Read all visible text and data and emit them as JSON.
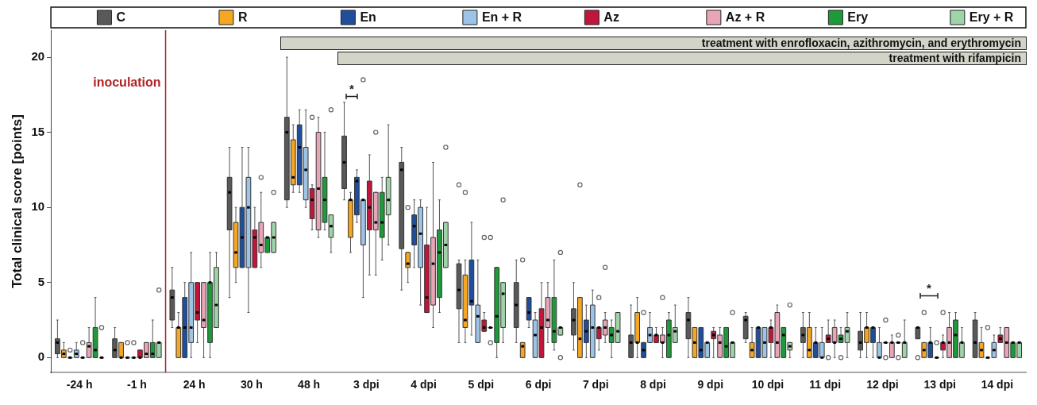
{
  "chart_data": {
    "type": "box",
    "ylabel": "Total clinical score [points]",
    "legend": "top",
    "categories": [
      "-24 h",
      "-1 h",
      "24 h",
      "30 h",
      "48 h",
      "3 dpi",
      "4 dpi",
      "5 dpi",
      "6 dpi",
      "7 dpi",
      "8 dpi",
      "9 dpi",
      "10 dpi",
      "11 dpi",
      "12 dpi",
      "13 dpi",
      "14 dpi"
    ],
    "ylim": [
      -1,
      21.8
    ],
    "yticks": [
      0,
      5,
      10,
      15,
      20
    ],
    "ref_lines": [
      {
        "axis": "x",
        "value": "24 h",
        "label": "inoculation",
        "color": "#b22222"
      }
    ],
    "annotations": [
      "treatment with enrofloxacin, azithromycin, and erythromycin",
      "treatment with rifampicin",
      "*",
      "*"
    ],
    "series": [
      {
        "name": "C",
        "color": "#595959",
        "boxes": [
          {
            "low": 0,
            "q1": 0.25,
            "median": 1,
            "q3": 1.25,
            "high": 2.5
          },
          {
            "low": 0,
            "q1": 0,
            "median": 0.5,
            "q3": 1.25,
            "high": 2
          },
          {
            "low": 2,
            "q1": 2.5,
            "median": 4,
            "q3": 4.5,
            "high": 6
          },
          {
            "low": 4,
            "q1": 8.5,
            "median": 11,
            "q3": 12,
            "high": 14
          },
          {
            "low": 10,
            "q1": 10.5,
            "median": 15,
            "q3": 16,
            "high": 20
          },
          {
            "low": 10.5,
            "q1": 11.25,
            "median": 13,
            "q3": 14.75,
            "high": 17
          },
          {
            "low": 4.5,
            "q1": 7.25,
            "median": 12.5,
            "q3": 13,
            "high": 14
          },
          {
            "low": 1,
            "q1": 3.25,
            "median": 4.5,
            "q3": 6.25,
            "high": 6.5,
            "outliers": [
              11.5
            ]
          },
          {
            "low": 1,
            "q1": 2,
            "median": 3.5,
            "q3": 5,
            "high": 6.5
          },
          {
            "low": 0.5,
            "q1": 1.5,
            "median": 2.5,
            "q3": 3.25,
            "high": 5
          },
          {
            "low": 0,
            "q1": 0,
            "median": 1,
            "q3": 1.5,
            "high": 3.5
          },
          {
            "low": 0,
            "q1": 1.25,
            "median": 2.5,
            "q3": 3,
            "high": 4
          },
          {
            "low": 1,
            "q1": 1.25,
            "median": 2.5,
            "q3": 2.75,
            "high": 3
          },
          {
            "low": 0,
            "q1": 1,
            "median": 1.5,
            "q3": 2,
            "high": 3
          },
          {
            "low": 0,
            "q1": 0.5,
            "median": 1,
            "q3": 1.75,
            "high": 3
          },
          {
            "low": 1.25,
            "q1": 1.25,
            "median": 2,
            "q3": 2,
            "high": 2,
            "outliers": [
              0
            ]
          },
          {
            "low": 0,
            "q1": 0,
            "median": 1,
            "q3": 2.5,
            "high": 3
          }
        ]
      },
      {
        "name": "R",
        "color": "#f5a623",
        "boxes": [
          {
            "low": 0,
            "q1": 0,
            "median": 0.25,
            "q3": 0.5,
            "high": 1
          },
          {
            "low": 0,
            "q1": 0,
            "median": 0,
            "q3": 1,
            "high": 1
          },
          {
            "low": 0,
            "q1": 0,
            "median": 2,
            "q3": 2,
            "high": 3
          },
          {
            "low": 5,
            "q1": 6,
            "median": 7,
            "q3": 9,
            "high": 10
          },
          {
            "low": 11,
            "q1": 11.5,
            "median": 12,
            "q3": 14.5,
            "high": 15.5
          },
          {
            "low": 7,
            "q1": 8,
            "median": 10.5,
            "q3": 10.5,
            "high": 11
          },
          {
            "low": 5,
            "q1": 6,
            "median": 6.25,
            "q3": 7,
            "high": 7,
            "outliers": [
              10
            ]
          },
          {
            "low": 1,
            "q1": 2,
            "median": 2.5,
            "q3": 5.5,
            "high": 6.5,
            "outliers": [
              11
            ]
          },
          {
            "low": 0,
            "q1": 0,
            "median": 0.75,
            "q3": 1,
            "high": 1,
            "outliers": [
              6.5
            ]
          },
          {
            "low": 0,
            "q1": 0,
            "median": 1.25,
            "q3": 4,
            "high": 4,
            "outliers": [
              11.5
            ]
          },
          {
            "low": 0,
            "q1": 1,
            "median": 1,
            "q3": 3,
            "high": 4
          },
          {
            "low": 0,
            "q1": 0,
            "median": 1,
            "q3": 2,
            "high": 2
          },
          {
            "low": 0,
            "q1": 0,
            "median": 0.5,
            "q3": 1,
            "high": 2
          },
          {
            "low": 0,
            "q1": 0,
            "median": 0.5,
            "q3": 2,
            "high": 3
          },
          {
            "low": 0,
            "q1": 1,
            "median": 2,
            "q3": 2,
            "high": 3
          },
          {
            "low": 0,
            "q1": 0,
            "median": 0.5,
            "q3": 1,
            "high": 1,
            "outliers": [
              3
            ]
          },
          {
            "low": 0,
            "q1": 0,
            "median": 0.5,
            "q3": 1,
            "high": 2
          }
        ]
      },
      {
        "name": "En",
        "color": "#1f4e9c",
        "boxes": [
          {
            "low": 0,
            "q1": 0,
            "median": 0,
            "q3": 0,
            "high": 0,
            "outliers": [
              0.5
            ]
          },
          {
            "low": 0,
            "q1": 0,
            "median": 0,
            "q3": 0,
            "high": 0,
            "outliers": [
              1
            ]
          },
          {
            "low": 0,
            "q1": 0,
            "median": 2,
            "q3": 4,
            "high": 5
          },
          {
            "low": 6,
            "q1": 6,
            "median": 8,
            "q3": 10,
            "high": 14
          },
          {
            "low": 11,
            "q1": 11.5,
            "median": 14,
            "q3": 15.5,
            "high": 16.5
          },
          {
            "low": 9,
            "q1": 9.5,
            "median": 11.75,
            "q3": 12,
            "high": 12.5
          },
          {
            "low": 6,
            "q1": 7.5,
            "median": 8.75,
            "q3": 9.5,
            "high": 10.5
          },
          {
            "low": 1.5,
            "q1": 3.5,
            "median": 3.75,
            "q3": 6.5,
            "high": 9
          },
          {
            "low": 2,
            "q1": 2.5,
            "median": 3,
            "q3": 4,
            "high": 4
          },
          {
            "low": 0,
            "q1": 1,
            "median": 1.75,
            "q3": 2.5,
            "high": 3.5
          },
          {
            "low": 0,
            "q1": 0,
            "median": 0.5,
            "q3": 1,
            "high": 1,
            "outliers": [
              3
            ]
          },
          {
            "low": 0,
            "q1": 0,
            "median": 0.5,
            "q3": 2,
            "high": 2
          },
          {
            "low": 0,
            "q1": 0,
            "median": 2,
            "q3": 2,
            "high": 2
          },
          {
            "low": 0,
            "q1": 0,
            "median": 1,
            "q3": 1,
            "high": 2
          },
          {
            "low": 0,
            "q1": 1,
            "median": 2,
            "q3": 2,
            "high": 2
          },
          {
            "low": 0,
            "q1": 0,
            "median": 1,
            "q3": 1,
            "high": 2
          },
          {
            "low": 0,
            "q1": 0,
            "median": 0,
            "q3": 0,
            "high": 0,
            "outliers": [
              2
            ]
          }
        ]
      },
      {
        "name": "En + R",
        "color": "#9dc3e6",
        "boxes": [
          {
            "low": 0,
            "q1": 0,
            "median": 0.25,
            "q3": 0.5,
            "high": 1
          },
          {
            "low": 0,
            "q1": 0,
            "median": 0,
            "q3": 0,
            "high": 0,
            "outliers": [
              1
            ]
          },
          {
            "low": 0,
            "q1": 1,
            "median": 2,
            "q3": 5,
            "high": 7
          },
          {
            "low": 3,
            "q1": 6,
            "median": 10,
            "q3": 12,
            "high": 14
          },
          {
            "low": 10,
            "q1": 10.5,
            "median": 12.5,
            "q3": 14,
            "high": 16.5
          },
          {
            "low": 4,
            "q1": 7.5,
            "median": 10.5,
            "q3": 10.5,
            "high": 10.5,
            "outliers": [
              18.5
            ]
          },
          {
            "low": 3.5,
            "q1": 6,
            "median": 8.25,
            "q3": 10,
            "high": 10.5
          },
          {
            "low": 1,
            "q1": 1,
            "median": 2.75,
            "q3": 3.5,
            "high": 6.5
          },
          {
            "low": 0,
            "q1": 0,
            "median": 1.5,
            "q3": 2.5,
            "high": 3
          },
          {
            "low": 0,
            "q1": 0,
            "median": 2,
            "q3": 3.5,
            "high": 4.5
          },
          {
            "low": 1,
            "q1": 1,
            "median": 1.5,
            "q3": 2,
            "high": 3
          },
          {
            "low": 0,
            "q1": 0,
            "median": 1,
            "q3": 1,
            "high": 1
          },
          {
            "low": 0,
            "q1": 0,
            "median": 1,
            "q3": 2,
            "high": 2
          },
          {
            "low": 0,
            "q1": 0,
            "median": 0,
            "q3": 1,
            "high": 2
          },
          {
            "low": 0,
            "q1": 0,
            "median": 0,
            "q3": 1,
            "high": 2
          },
          {
            "low": 0,
            "q1": 0,
            "median": 0,
            "q3": 0,
            "high": 0,
            "outliers": [
              1
            ]
          },
          {
            "low": 0,
            "q1": 0,
            "median": 0.5,
            "q3": 1,
            "high": 1.5
          }
        ]
      },
      {
        "name": "Az",
        "color": "#c0163c",
        "boxes": [
          {
            "low": 0,
            "q1": 0,
            "median": 0,
            "q3": 0,
            "high": 0,
            "outliers": [
              1
            ]
          },
          {
            "low": 0,
            "q1": 0,
            "median": 0,
            "q3": 0.5,
            "high": 0.5
          },
          {
            "low": 1,
            "q1": 2.5,
            "median": 3,
            "q3": 5,
            "high": 5
          },
          {
            "low": 6,
            "q1": 6,
            "median": 8,
            "q3": 8.5,
            "high": 10
          },
          {
            "low": 8.5,
            "q1": 9.25,
            "median": 10.5,
            "q3": 11.25,
            "high": 11.5,
            "outliers": [
              16
            ]
          },
          {
            "low": 5.5,
            "q1": 8.5,
            "median": 10,
            "q3": 11.75,
            "high": 13.5
          },
          {
            "low": 3,
            "q1": 3,
            "median": 4,
            "q3": 7.5,
            "high": 10
          },
          {
            "low": 1.75,
            "q1": 1.75,
            "median": 2,
            "q3": 2.5,
            "high": 3,
            "outliers": [
              8
            ]
          },
          {
            "low": 0,
            "q1": 0,
            "median": 2,
            "q3": 3.25,
            "high": 5
          },
          {
            "low": 0.5,
            "q1": 1.25,
            "median": 2,
            "q3": 2,
            "high": 2,
            "outliers": [
              4
            ]
          },
          {
            "low": 1,
            "q1": 1,
            "median": 1.5,
            "q3": 1.5,
            "high": 2
          },
          {
            "low": 0,
            "q1": 1.25,
            "median": 1.5,
            "q3": 1.75,
            "high": 2
          },
          {
            "low": 0,
            "q1": 1,
            "median": 2,
            "q3": 2,
            "high": 2.5
          },
          {
            "low": 1,
            "q1": 1,
            "median": 1.25,
            "q3": 1.5,
            "high": 2.5,
            "outliers": [
              0
            ]
          },
          {
            "low": 1,
            "q1": 1,
            "median": 1,
            "q3": 1,
            "high": 1,
            "outliers": [
              2.5,
              0
            ]
          },
          {
            "low": 0,
            "q1": 0.5,
            "median": 1,
            "q3": 1,
            "high": 1.5,
            "outliers": [
              3
            ]
          },
          {
            "low": 1,
            "q1": 1,
            "median": 1.25,
            "q3": 1.5,
            "high": 2
          }
        ]
      },
      {
        "name": "Az + R",
        "color": "#e8a5b5",
        "boxes": [
          {
            "low": 0,
            "q1": 0,
            "median": 0.75,
            "q3": 1,
            "high": 2
          },
          {
            "low": 0,
            "q1": 0,
            "median": 0.25,
            "q3": 1,
            "high": 1
          },
          {
            "low": 0,
            "q1": 2,
            "median": 2.5,
            "q3": 5,
            "high": 5
          },
          {
            "low": 6,
            "q1": 7,
            "median": 7.5,
            "q3": 9,
            "high": 11,
            "outliers": [
              12
            ]
          },
          {
            "low": 8,
            "q1": 8.5,
            "median": 11.25,
            "q3": 15,
            "high": 16
          },
          {
            "low": 5.5,
            "q1": 8.5,
            "median": 9,
            "q3": 11,
            "high": 11,
            "outliers": [
              15
            ]
          },
          {
            "low": 2,
            "q1": 3.5,
            "median": 6.25,
            "q3": 8,
            "high": 13
          },
          {
            "low": 2,
            "q1": 2,
            "median": 2,
            "q3": 2,
            "high": 2,
            "outliers": [
              8,
              1
            ]
          },
          {
            "low": 1,
            "q1": 2,
            "median": 2.5,
            "q3": 4,
            "high": 5
          },
          {
            "low": 1,
            "q1": 1.5,
            "median": 2,
            "q3": 2.5,
            "high": 3,
            "outliers": [
              6
            ]
          },
          {
            "low": 0,
            "q1": 1,
            "median": 1,
            "q3": 1.5,
            "high": 2,
            "outliers": [
              4
            ]
          },
          {
            "low": 0,
            "q1": 0,
            "median": 1,
            "q3": 1.5,
            "high": 2
          },
          {
            "low": 0,
            "q1": 0,
            "median": 1,
            "q3": 3,
            "high": 3.5
          },
          {
            "low": 0,
            "q1": 1,
            "median": 1,
            "q3": 2,
            "high": 2.5
          },
          {
            "low": 0,
            "q1": 0,
            "median": 1,
            "q3": 1,
            "high": 1.5
          },
          {
            "low": 0,
            "q1": 0,
            "median": 1,
            "q3": 2,
            "high": 3
          },
          {
            "low": 0,
            "q1": 0,
            "median": 1,
            "q3": 2,
            "high": 2
          }
        ]
      },
      {
        "name": "Ery",
        "color": "#1e9a3a",
        "boxes": [
          {
            "low": 0,
            "q1": 0,
            "median": 0.5,
            "q3": 2,
            "high": 4
          },
          {
            "low": 0,
            "q1": 0,
            "median": 0.25,
            "q3": 1,
            "high": 2.5
          },
          {
            "low": 0,
            "q1": 1,
            "median": 5,
            "q3": 5,
            "high": 7
          },
          {
            "low": 7,
            "q1": 7,
            "median": 8,
            "q3": 8,
            "high": 8
          },
          {
            "low": 8.5,
            "q1": 9,
            "median": 10.5,
            "q3": 12,
            "high": 15
          },
          {
            "low": 6.5,
            "q1": 8,
            "median": 9,
            "q3": 11,
            "high": 12
          },
          {
            "low": 3,
            "q1": 4,
            "median": 7,
            "q3": 8.5,
            "high": 10.5
          },
          {
            "low": 0,
            "q1": 1,
            "median": 2.75,
            "q3": 6,
            "high": 6
          },
          {
            "low": 0.5,
            "q1": 1,
            "median": 1.75,
            "q3": 4,
            "high": 6.5
          },
          {
            "low": 0,
            "q1": 1,
            "median": 1.5,
            "q3": 2,
            "high": 2.5
          },
          {
            "low": 0,
            "q1": 0,
            "median": 1.5,
            "q3": 2.5,
            "high": 3
          },
          {
            "low": 0,
            "q1": 0,
            "median": 0.75,
            "q3": 2,
            "high": 2
          },
          {
            "low": 0,
            "q1": 0,
            "median": 1.5,
            "q3": 2,
            "high": 2
          },
          {
            "low": 1,
            "q1": 1,
            "median": 1.25,
            "q3": 1.5,
            "high": 2,
            "outliers": [
              0
            ]
          },
          {
            "low": 1,
            "q1": 1,
            "median": 1,
            "q3": 1,
            "high": 1,
            "outliers": [
              1.5,
              0
            ]
          },
          {
            "low": 0,
            "q1": 0,
            "median": 1.5,
            "q3": 2.5,
            "high": 3
          },
          {
            "low": 0,
            "q1": 0,
            "median": 1,
            "q3": 1,
            "high": 1
          }
        ]
      },
      {
        "name": "Ery + R",
        "color": "#9fd4a9",
        "boxes": [
          {
            "low": 0,
            "q1": 0,
            "median": 0,
            "q3": 0,
            "high": 0,
            "outliers": [
              2
            ]
          },
          {
            "low": 0,
            "q1": 0,
            "median": 1,
            "q3": 1,
            "high": 1,
            "outliers": [
              4.5
            ]
          },
          {
            "low": 2,
            "q1": 2,
            "median": 3.5,
            "q3": 6,
            "high": 7
          },
          {
            "low": 7,
            "q1": 7,
            "median": 8,
            "q3": 9,
            "high": 9,
            "outliers": [
              11
            ]
          },
          {
            "low": 7,
            "q1": 8,
            "median": 8.75,
            "q3": 9.5,
            "high": 9.5,
            "outliers": [
              16.5
            ]
          },
          {
            "low": 7.5,
            "q1": 9.5,
            "median": 10.5,
            "q3": 12,
            "high": 15.5
          },
          {
            "low": 6,
            "q1": 6,
            "median": 7.5,
            "q3": 9,
            "high": 9,
            "outliers": [
              14
            ]
          },
          {
            "low": 1,
            "q1": 2,
            "median": 4.25,
            "q3": 5,
            "high": 5,
            "outliers": [
              10.5
            ]
          },
          {
            "low": 1.5,
            "q1": 1.5,
            "median": 2,
            "q3": 2,
            "high": 2,
            "outliers": [
              7,
              0
            ]
          },
          {
            "low": 1,
            "q1": 1,
            "median": 1.75,
            "q3": 3,
            "high": 3
          },
          {
            "low": 1,
            "q1": 1,
            "median": 1.75,
            "q3": 2,
            "high": 3.5
          },
          {
            "low": 0,
            "q1": 0,
            "median": 1,
            "q3": 1,
            "high": 1,
            "outliers": [
              3
            ]
          },
          {
            "low": 0,
            "q1": 0.5,
            "median": 0.75,
            "q3": 1,
            "high": 1,
            "outliers": [
              3.5
            ]
          },
          {
            "low": 0,
            "q1": 1,
            "median": 1.75,
            "q3": 2,
            "high": 3
          },
          {
            "low": 0,
            "q1": 0,
            "median": 1,
            "q3": 1,
            "high": 2.5
          },
          {
            "low": 0,
            "q1": 0,
            "median": 1,
            "q3": 1,
            "high": 2
          },
          {
            "low": 0,
            "q1": 0,
            "median": 1,
            "q3": 1,
            "high": 1
          }
        ]
      }
    ]
  }
}
